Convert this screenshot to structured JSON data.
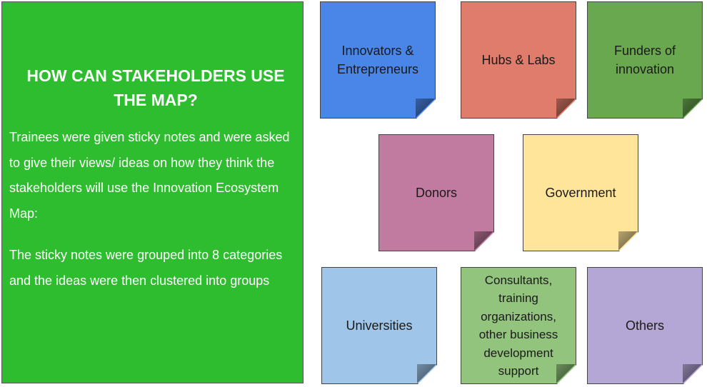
{
  "panel": {
    "title_line1": "HOW CAN  STAKEHOLDERS USE",
    "title_line2": "THE MAP?",
    "paragraph1": "Trainees were given sticky notes and were asked to give their views/ ideas on how they think the stakeholders will use the Innovation Ecosystem Map:",
    "paragraph2": "The sticky notes were grouped into 8 categories and the ideas were then clustered into groups",
    "color": "#2ebd2e"
  },
  "notes": [
    {
      "label": "Innovators & Entrepreneurs",
      "color": "#4a86e8"
    },
    {
      "label": "Hubs & Labs",
      "color": "#e07c6b"
    },
    {
      "label": "Funders of innovation",
      "color": "#6aa84f"
    },
    {
      "label": "Donors",
      "color": "#c27ba0"
    },
    {
      "label": "Government",
      "color": "#ffe599"
    },
    {
      "label": "Universities",
      "color": "#9fc5e8"
    },
    {
      "label": "Consultants, training organizations, other business development support",
      "color": "#93c47d"
    },
    {
      "label": "Others",
      "color": "#b4a7d6"
    }
  ]
}
